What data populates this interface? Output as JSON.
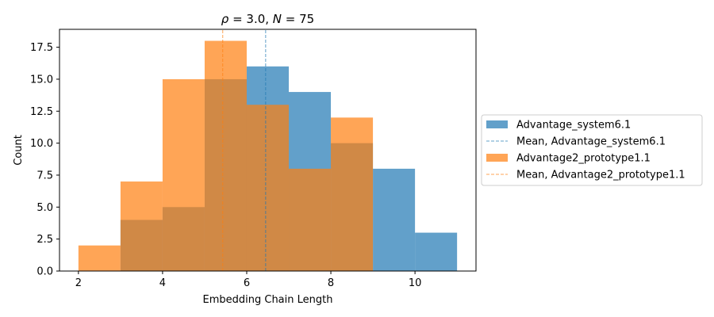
{
  "chart_data": {
    "type": "histogram",
    "title_symbol": "ρ",
    "title_rest": " = 3.0, ",
    "title_symbol2": "N",
    "title_rest2": " = 75",
    "xlabel": "Embedding Chain Length",
    "ylabel": "Count",
    "xlim": [
      1.55,
      11.45
    ],
    "ylim": [
      0,
      18.9
    ],
    "xticks": [
      2,
      4,
      6,
      8,
      10
    ],
    "yticks": [
      0.0,
      2.5,
      5.0,
      7.5,
      10.0,
      12.5,
      15.0,
      17.5
    ],
    "ytick_labels": [
      "0.0",
      "2.5",
      "5.0",
      "7.5",
      "10.0",
      "12.5",
      "15.0",
      "17.5"
    ],
    "bin_edges": [
      2,
      3,
      4,
      5,
      6,
      7,
      8,
      9,
      10,
      11
    ],
    "series": [
      {
        "name": "Advantage_system6.1",
        "counts": [
          0,
          4,
          5,
          15,
          16,
          14,
          10,
          8,
          3
        ],
        "mean": 6.45,
        "mean_label": "Mean, Advantage_system6.1",
        "color": "#1f77b4"
      },
      {
        "name": "Advantage2_prototype1.1",
        "counts": [
          2,
          7,
          15,
          18,
          13,
          8,
          12,
          0,
          0
        ],
        "mean": 5.43,
        "mean_label": "Mean, Advantage2_prototype1.1",
        "color": "#ff7f0e"
      }
    ],
    "legend_position": "center-right",
    "grid": false
  }
}
